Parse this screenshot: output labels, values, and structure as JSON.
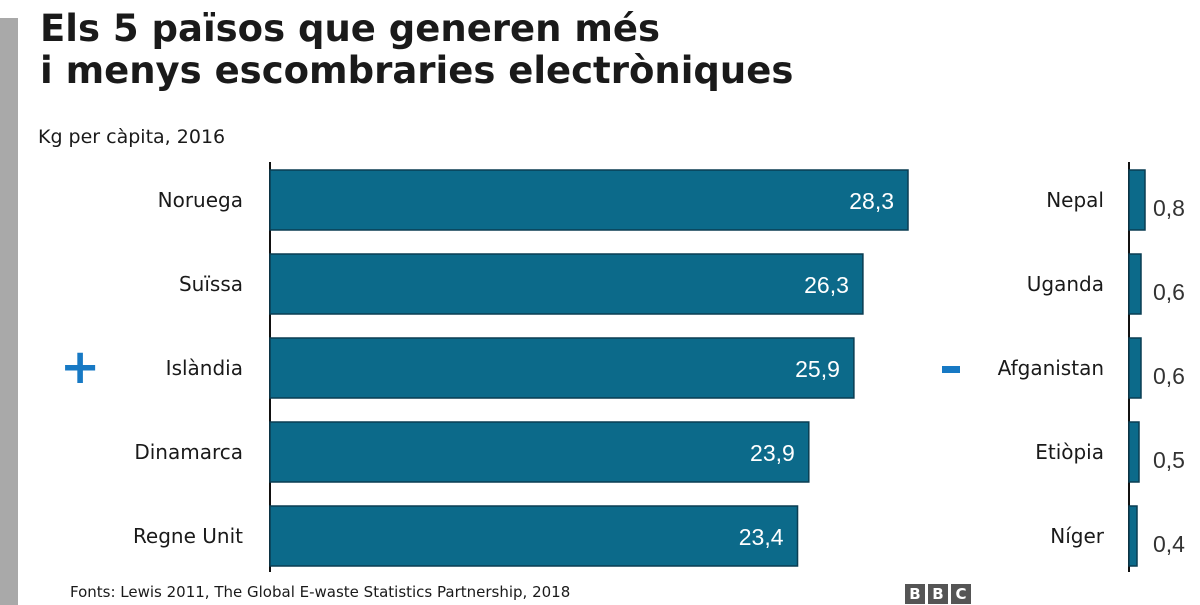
{
  "title_line1": "Els 5 països que generen més",
  "title_line2": "i menys escombraries electròniques",
  "subtitle": "Kg per càpita, 2016",
  "source": "Fonts: Lewis 2011, The Global E-waste Statistics Partnership, 2018",
  "logo": [
    "B",
    "B",
    "C"
  ],
  "colors": {
    "bar": "#0c6a8a",
    "bar_edge": "#0a3d52",
    "accent": "#1779c4",
    "axis": "#111111",
    "strip": "#a9a9a9"
  },
  "chart_data": [
    {
      "type": "bar",
      "orientation": "horizontal",
      "marker": "+",
      "categories": [
        "Noruega",
        "Suïssa",
        "Islàndia",
        "Dinamarca",
        "Regne Unit"
      ],
      "values": [
        28.3,
        26.3,
        25.9,
        23.9,
        23.4
      ],
      "value_labels": [
        "28,3",
        "26,3",
        "25,9",
        "23,9",
        "23,4"
      ],
      "unit": "Kg per càpita, 2016",
      "grid": false,
      "legend": "none"
    },
    {
      "type": "bar",
      "orientation": "horizontal",
      "marker": "-",
      "categories": [
        "Nepal",
        "Uganda",
        "Afganistan",
        "Etiòpia",
        "Níger"
      ],
      "values": [
        0.8,
        0.6,
        0.6,
        0.5,
        0.4
      ],
      "value_labels": [
        "0,8",
        "0,6",
        "0,6",
        "0,5",
        "0,4"
      ],
      "unit": "Kg per càpita, 2016",
      "grid": false,
      "legend": "none"
    }
  ]
}
